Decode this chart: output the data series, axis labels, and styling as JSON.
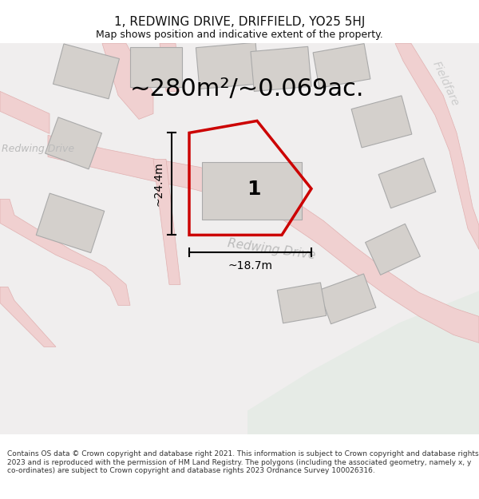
{
  "title": "1, REDWING DRIVE, DRIFFIELD, YO25 5HJ",
  "subtitle": "Map shows position and indicative extent of the property.",
  "area_text": "~280m²/~0.069ac.",
  "label_1": "1",
  "dim_height": "~24.4m",
  "dim_width": "~18.7m",
  "road_label_rd1": "Redwing Drive",
  "road_label_rd2": "Redwing Drive",
  "road_label_ff": "Fieldfare",
  "copyright_text": "Contains OS data © Crown copyright and database right 2021. This information is subject to Crown copyright and database rights 2023 and is reproduced with the permission of HM Land Registry. The polygons (including the associated geometry, namely x, y co-ordinates) are subject to Crown copyright and database rights 2023 Ordnance Survey 100026316.",
  "bg_color": "#f0eeee",
  "green_color": "#e6ebe6",
  "road_color": "#f0d0d0",
  "road_edge": "#e0b0b0",
  "property_outline_color": "#cc0000",
  "building_color": "#d4d0cc",
  "building_edge": "#aaaaaa",
  "text_color": "#111111",
  "road_text_color": "#bbbbbb",
  "title_fontsize": 11,
  "subtitle_fontsize": 9,
  "area_fontsize": 22,
  "label_fontsize": 18,
  "dim_fontsize": 10,
  "copyright_fontsize": 6.5,
  "road_fontsize": 11
}
